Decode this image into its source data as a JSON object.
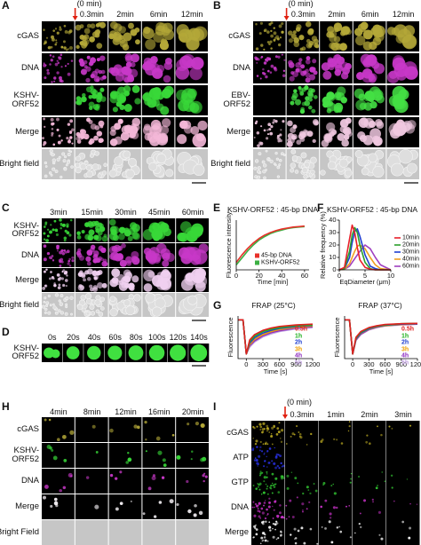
{
  "panels": {
    "A": {
      "letter": "A",
      "zero": "(0 min)",
      "times": [
        "0.3min",
        "2min",
        "6min",
        "12min"
      ],
      "rows": [
        {
          "label": "cGAS",
          "color": "#b4a838"
        },
        {
          "label": "DNA",
          "color": "#c838c8"
        },
        {
          "label": "KSHV-ORF52",
          "color": "#38d838"
        },
        {
          "label": "Merge",
          "color": "#f4b8d8"
        },
        {
          "label": "Bright field",
          "color": "#c6c6c6"
        }
      ]
    },
    "B": {
      "letter": "B",
      "zero": "(0 min)",
      "times": [
        "0.3min",
        "2min",
        "6min",
        "12min"
      ],
      "rows": [
        {
          "label": "cGAS",
          "color": "#b4a838"
        },
        {
          "label": "DNA",
          "color": "#c838c8"
        },
        {
          "label": "EBV-ORF52",
          "color": "#44e044"
        },
        {
          "label": "Merge",
          "color": "#f0c8e0"
        },
        {
          "label": "Bright field",
          "color": "#c6c6c6"
        }
      ]
    },
    "C": {
      "letter": "C",
      "times": [
        "3min",
        "15min",
        "30min",
        "45min",
        "60min"
      ],
      "rows": [
        {
          "label": "KSHV-ORF52",
          "color": "#38d838"
        },
        {
          "label": "DNA",
          "color": "#c838c8"
        },
        {
          "label": "Merge",
          "color": "#f0d0f0"
        },
        {
          "label": "Bright field",
          "color": "#c6c6c6"
        }
      ]
    },
    "D": {
      "letter": "D",
      "times": [
        "0s",
        "20s",
        "40s",
        "60s",
        "80s",
        "100s",
        "120s",
        "140s"
      ],
      "rows": [
        {
          "label": "KSHV-ORF52",
          "color": "#40e040"
        }
      ]
    },
    "E": {
      "letter": "E"
    },
    "F": {
      "letter": "F"
    },
    "G": {
      "letter": "G"
    },
    "H": {
      "letter": "H",
      "times": [
        "4min",
        "8min",
        "12min",
        "16min",
        "20min"
      ],
      "rows": [
        {
          "label": "cGAS",
          "color": "#b4a838"
        },
        {
          "label": "KSHV-ORF52",
          "color": "#38d838"
        },
        {
          "label": "DNA",
          "color": "#c838c8"
        },
        {
          "label": "Merge",
          "color": "#f4f0f4"
        },
        {
          "label": "Bright Field",
          "color": "#c6c6c6"
        }
      ]
    },
    "I": {
      "letter": "I",
      "zero": "(0 min)",
      "times": [
        "0.3min",
        "1min",
        "2min",
        "3min"
      ],
      "rows": [
        {
          "label": "cGAS",
          "color": "#b0a020"
        },
        {
          "label": "ATP",
          "color": "#2830e0"
        },
        {
          "label": "GTP",
          "color": "#30c030"
        },
        {
          "label": "DNA",
          "color": "#c030c0"
        },
        {
          "label": "Merge",
          "color": "#f4f4f4"
        }
      ]
    }
  },
  "chart_data": [
    {
      "type": "line",
      "title": "KSHV-ORF52 : 45-bp DNA",
      "x_label": "Time [min]",
      "y_label": "Fluorescence intensity",
      "x": [
        0,
        5,
        10,
        15,
        20,
        25,
        30,
        35,
        40,
        45,
        50,
        55,
        60
      ],
      "xlim": [
        0,
        64
      ],
      "xticks": [
        0,
        20,
        40,
        60
      ],
      "ylim": [
        0,
        1
      ],
      "series": [
        {
          "name": "45-bp DNA",
          "color": "#e8302a",
          "values": [
            0.15,
            0.3,
            0.43,
            0.54,
            0.63,
            0.7,
            0.75,
            0.79,
            0.82,
            0.84,
            0.86,
            0.87,
            0.88
          ]
        },
        {
          "name": "KSHV-ORF52",
          "color": "#3cb043",
          "values": [
            0.1,
            0.24,
            0.38,
            0.5,
            0.6,
            0.67,
            0.73,
            0.77,
            0.8,
            0.83,
            0.85,
            0.86,
            0.87
          ]
        }
      ]
    },
    {
      "type": "line",
      "title": "KSHV-ORF52 : 45-bp DNA",
      "x_label": "EqDiameter (μm)",
      "y_label": "Relative frequency (%)",
      "x": [
        0,
        1,
        2,
        2.5,
        3,
        3.5,
        4,
        5,
        6,
        7,
        8,
        10
      ],
      "xlim": [
        0,
        10
      ],
      "xticks": [
        0,
        5,
        10
      ],
      "ylim": [
        0,
        40
      ],
      "yticks": [
        0,
        10,
        20,
        30,
        40
      ],
      "series": [
        {
          "name": "10min",
          "color": "#e8202a",
          "values": [
            0,
            2,
            25,
            36,
            30,
            18,
            8,
            2,
            0.5,
            0,
            0,
            0
          ]
        },
        {
          "name": "20min",
          "color": "#2ca02c",
          "values": [
            0,
            1,
            15,
            28,
            34,
            30,
            20,
            6,
            1,
            0,
            0,
            0
          ]
        },
        {
          "name": "30min",
          "color": "#1f3fd0",
          "values": [
            0,
            1,
            10,
            22,
            31,
            33,
            27,
            12,
            3,
            1,
            0,
            0
          ]
        },
        {
          "name": "40min",
          "color": "#f0a020",
          "values": [
            0,
            0.5,
            5,
            10,
            15,
            19,
            20,
            17,
            10,
            4,
            1,
            0
          ]
        },
        {
          "name": "60min",
          "color": "#a040c0",
          "values": [
            0,
            0.5,
            3,
            6,
            9,
            12,
            15,
            20,
            17,
            10,
            4,
            0
          ]
        }
      ]
    },
    {
      "type": "line",
      "title": "FRAP (25°C)",
      "x_label": "Time [s]",
      "y_label": "Fluorescence",
      "x": [
        -150,
        -60,
        0,
        60,
        150,
        300,
        450,
        600,
        900,
        1200
      ],
      "xlim": [
        -150,
        1200
      ],
      "xticks": [
        0,
        300,
        600,
        900,
        1200
      ],
      "ylim": [
        0,
        1.1
      ],
      "series": [
        {
          "name": "0.5h",
          "color": "#e02020",
          "values": [
            1,
            1,
            0.12,
            0.48,
            0.62,
            0.73,
            0.79,
            0.83,
            0.87,
            0.89
          ]
        },
        {
          "name": "1h",
          "color": "#20b020",
          "values": [
            1,
            1,
            0.12,
            0.44,
            0.58,
            0.7,
            0.76,
            0.8,
            0.85,
            0.87
          ]
        },
        {
          "name": "2h",
          "color": "#2040d0",
          "values": [
            1,
            1,
            0.12,
            0.4,
            0.54,
            0.66,
            0.73,
            0.78,
            0.83,
            0.86
          ]
        },
        {
          "name": "3h",
          "color": "#f0a000",
          "values": [
            1,
            1,
            0.12,
            0.36,
            0.5,
            0.62,
            0.7,
            0.75,
            0.81,
            0.84
          ]
        },
        {
          "name": "4h",
          "color": "#9030c0",
          "values": [
            1,
            1,
            0.12,
            0.33,
            0.46,
            0.59,
            0.67,
            0.72,
            0.79,
            0.82
          ]
        },
        {
          "name": "5h",
          "color": "#c0a0e0",
          "values": [
            1,
            1,
            0.12,
            0.3,
            0.43,
            0.56,
            0.64,
            0.7,
            0.77,
            0.8
          ]
        }
      ]
    },
    {
      "type": "line",
      "title": "FRAP (37°C)",
      "x_label": "Time [s]",
      "y_label": "Fluorescence",
      "x": [
        -150,
        -60,
        0,
        60,
        150,
        300,
        450,
        600,
        900,
        1200
      ],
      "xlim": [
        -150,
        1200
      ],
      "xticks": [
        0,
        300,
        600,
        900,
        1200
      ],
      "ylim": [
        0,
        1.1
      ],
      "series": [
        {
          "name": "0.5h",
          "color": "#e02020",
          "values": [
            1,
            1,
            0.12,
            0.55,
            0.7,
            0.8,
            0.85,
            0.88,
            0.9,
            0.91
          ]
        },
        {
          "name": "1h",
          "color": "#20b020",
          "values": [
            1,
            1,
            0.12,
            0.53,
            0.68,
            0.79,
            0.84,
            0.87,
            0.9,
            0.91
          ]
        },
        {
          "name": "2h",
          "color": "#2040d0",
          "values": [
            1,
            1,
            0.12,
            0.51,
            0.66,
            0.77,
            0.83,
            0.86,
            0.89,
            0.9
          ]
        },
        {
          "name": "3h",
          "color": "#f0a000",
          "values": [
            1,
            1,
            0.12,
            0.5,
            0.65,
            0.76,
            0.82,
            0.85,
            0.88,
            0.9
          ]
        },
        {
          "name": "4h",
          "color": "#9030c0",
          "values": [
            1,
            1,
            0.12,
            0.48,
            0.63,
            0.75,
            0.81,
            0.85,
            0.88,
            0.89
          ]
        },
        {
          "name": "5h",
          "color": "#c0a0e0",
          "values": [
            1,
            1,
            0.12,
            0.47,
            0.62,
            0.74,
            0.8,
            0.84,
            0.87,
            0.89
          ]
        }
      ]
    }
  ]
}
